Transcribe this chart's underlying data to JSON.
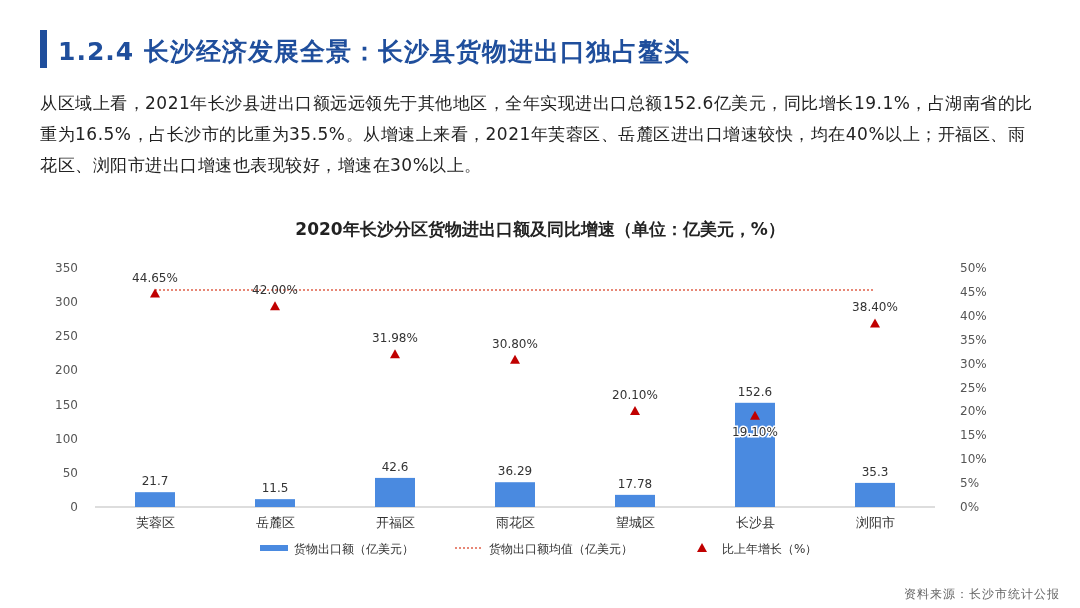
{
  "chart_data": {
    "type": "bar",
    "title": "2020年长沙分区货物进出口额及同比增速（单位：亿美元，%）",
    "annotations": [
      "1.2.4 长沙经济发展全景：长沙县货物进出口独占鳌头",
      "从区域上看，2021年长沙县进出口额远远领先于其他地区，全年实现进出口总额152.6亿美元，同比增长19.1%，占湖南省的比重为16.5%，占长沙市的比重为35.5%。从增速上来看，2021年芙蓉区、岳麓区进出口增速较快，均在40%以上；开福区、雨花区、浏阳市进出口增速也表现较好，增速在30%以上。",
      "资料来源：长沙市统计公报"
    ],
    "categories": [
      "芙蓉区",
      "岳麓区",
      "开福区",
      "雨花区",
      "望城区",
      "长沙县",
      "浏阳市"
    ],
    "series": [
      {
        "name": "货物出口额（亿美元）",
        "color": "#4a8ae0",
        "values": [
          21.7,
          11.5,
          42.6,
          36.29,
          17.78,
          152.6,
          35.3
        ],
        "value_labels": [
          "21.7",
          "11.5",
          "42.6",
          "36.29",
          "17.78",
          "152.6",
          "35.3"
        ]
      },
      {
        "name": "货物出口额均值（亿美元）",
        "type": "line",
        "axis": "y2",
        "color": "#e0604a",
        "line_style": "dotted",
        "marker": "none",
        "values": [
          45.4,
          45.4,
          45.4,
          45.4,
          45.4,
          45.4,
          45.4
        ]
      },
      {
        "name": "比上年增长（%）",
        "type": "scatter",
        "axis": "y2",
        "color": "#c00000",
        "marker": "triangle",
        "values": [
          44.65,
          42.0,
          31.98,
          30.8,
          20.1,
          19.1,
          38.4
        ],
        "value_labels": [
          "44.65%",
          "42.00%",
          "31.98%",
          "30.80%",
          "20.10%",
          "19.10%",
          "38.40%"
        ]
      }
    ],
    "ylim": [
      0,
      350
    ],
    "yticks": [
      0,
      50,
      100,
      150,
      200,
      250,
      300,
      350
    ],
    "y2lim": [
      0,
      50
    ],
    "y2ticks": [
      {
        "value": 0,
        "label": "0%"
      },
      {
        "value": 5,
        "label": "5%"
      },
      {
        "value": 10,
        "label": "10%"
      },
      {
        "value": 15,
        "label": "15%"
      },
      {
        "value": 20,
        "label": "20%"
      },
      {
        "value": 25,
        "label": "25%"
      },
      {
        "value": 30,
        "label": "30%"
      },
      {
        "value": 35,
        "label": "35%"
      },
      {
        "value": 40,
        "label": "40%"
      },
      {
        "value": 45,
        "label": "45%"
      },
      {
        "value": 50,
        "label": "50%"
      }
    ],
    "grid": false,
    "legend": "bottom"
  }
}
